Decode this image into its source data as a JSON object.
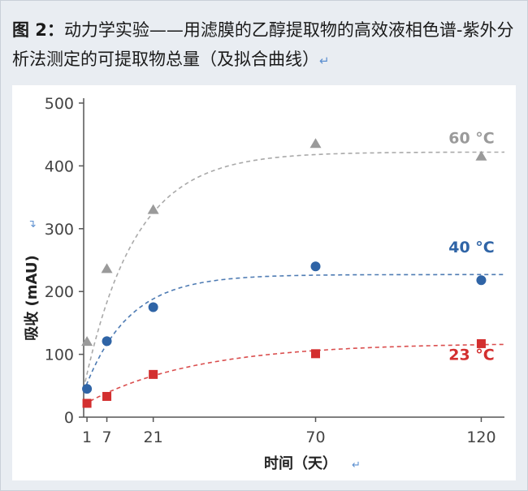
{
  "caption": {
    "figure_label": "图 2：",
    "text": "动力学实验——用滤膜的乙醇提取物的高效液相色谱-紫外分析法测定的可提取物总量（及拟合曲线）",
    "return_mark": "↵"
  },
  "chart_data": {
    "type": "scatter",
    "xlabel": "时间（天）",
    "ylabel": "吸收 (mAU)",
    "xlim": [
      0,
      127
    ],
    "ylim": [
      0,
      500
    ],
    "x_ticks": [
      1,
      7,
      21,
      70,
      120
    ],
    "y_ticks": [
      0,
      100,
      200,
      300,
      400,
      500
    ],
    "series": [
      {
        "name": "60 °C",
        "color": "#9a9a9a",
        "marker": "triangle",
        "points": [
          [
            1,
            120
          ],
          [
            7,
            236
          ],
          [
            21,
            330
          ],
          [
            70,
            435
          ],
          [
            120,
            415
          ]
        ],
        "fit": {
          "plateau": 422,
          "start": 45,
          "rate": 0.065
        }
      },
      {
        "name": "40 °C",
        "color": "#2f64a6",
        "marker": "circle",
        "points": [
          [
            1,
            45
          ],
          [
            7,
            121
          ],
          [
            21,
            175
          ],
          [
            70,
            240
          ],
          [
            120,
            218
          ]
        ],
        "fit": {
          "plateau": 227,
          "start": 40,
          "rate": 0.075
        }
      },
      {
        "name": "23 °C",
        "color": "#d32f2f",
        "marker": "square",
        "points": [
          [
            1,
            22
          ],
          [
            7,
            33
          ],
          [
            21,
            68
          ],
          [
            70,
            101
          ],
          [
            120,
            117
          ]
        ],
        "fit": {
          "plateau": 118,
          "start": 20,
          "rate": 0.03
        }
      }
    ]
  }
}
